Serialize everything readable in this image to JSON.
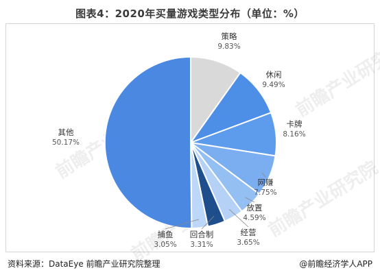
{
  "title": "图表4：2020年买量游戏类型分布（单位：%）",
  "footer": {
    "source": "资料来源：DataEye 前瞻产业研究院整理",
    "brand": "@前瞻经济学人APP"
  },
  "watermark": "前瞻产业研究院",
  "chart_data": {
    "type": "pie",
    "title": "图表4：2020年买量游戏类型分布（单位：%）",
    "unit": "%",
    "slices": [
      {
        "label": "策略",
        "value": 9.83,
        "display": "9.83%",
        "color": "#d9d9d9"
      },
      {
        "label": "休闲",
        "value": 9.49,
        "display": "9.49%",
        "color": "#4d8fe6"
      },
      {
        "label": "卡牌",
        "value": 8.16,
        "display": "8.16%",
        "color": "#5d9cec"
      },
      {
        "label": "网赚",
        "value": 7.75,
        "display": "7.75%",
        "color": "#7aaef0"
      },
      {
        "label": "放置",
        "value": 4.59,
        "display": "4.59%",
        "color": "#94bff3"
      },
      {
        "label": "经营",
        "value": 3.65,
        "display": "3.65%",
        "color": "#b5d2f6"
      },
      {
        "label": "回合制",
        "value": 3.31,
        "display": "3.31%",
        "color": "#1f4e8c"
      },
      {
        "label": "捕鱼",
        "value": 3.05,
        "display": "3.05%",
        "color": "#bcd7f7"
      },
      {
        "label": "其他",
        "value": 50.17,
        "display": "50.17%",
        "color": "#4a88e2"
      }
    ]
  }
}
